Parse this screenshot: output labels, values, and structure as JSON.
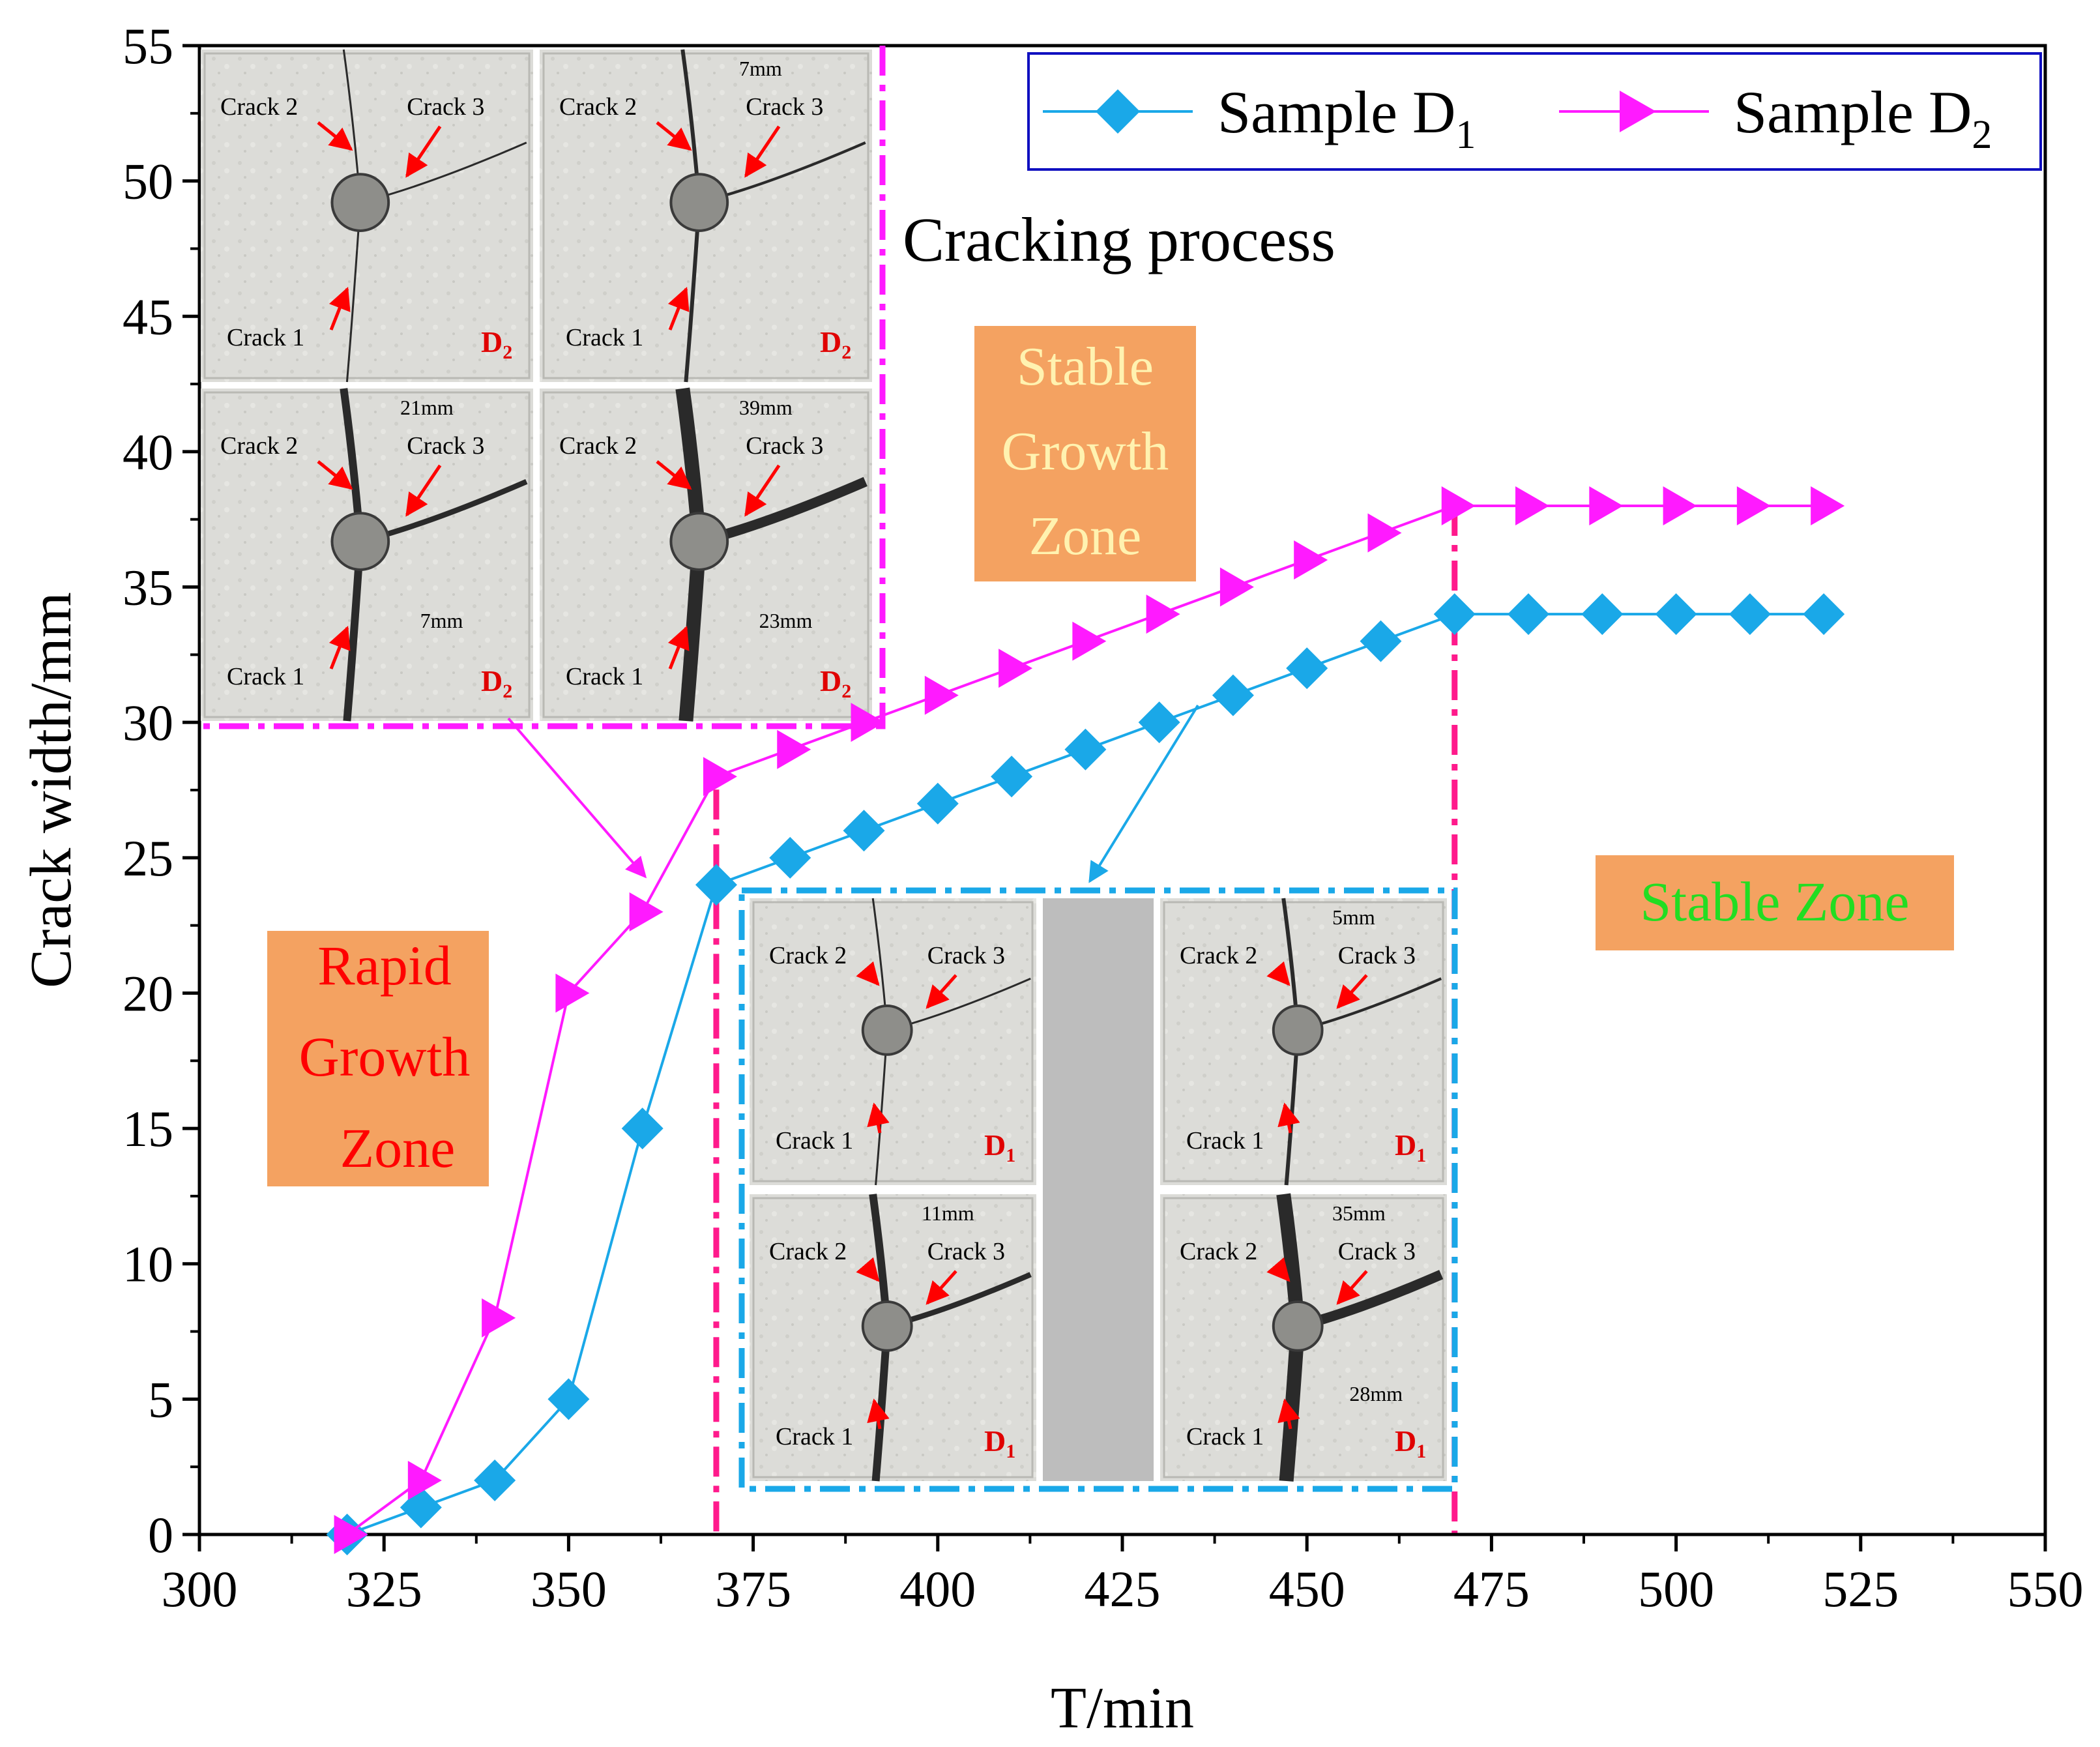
{
  "chart_data": {
    "type": "line",
    "xlabel": "T/min",
    "ylabel": "Crack width/mm",
    "xlim": [
      300,
      550
    ],
    "ylim": [
      0,
      55
    ],
    "xticks": [
      300,
      325,
      350,
      375,
      400,
      425,
      450,
      475,
      500,
      525,
      550
    ],
    "yticks": [
      0,
      5,
      10,
      15,
      20,
      25,
      30,
      35,
      40,
      45,
      50,
      55
    ],
    "legend_position": "top-right",
    "series": [
      {
        "name": "Sample D",
        "subscript": "1",
        "color": "#1aa8e8",
        "marker": "diamond",
        "x": [
          320,
          330,
          340,
          350,
          360,
          370,
          380,
          390,
          400,
          410,
          420,
          430,
          440,
          450,
          460,
          470,
          480,
          490,
          500,
          510,
          520
        ],
        "y": [
          0,
          1,
          2,
          5,
          15,
          24,
          25,
          26,
          27,
          28,
          29,
          30,
          31,
          32,
          33,
          34,
          34,
          34,
          34,
          34,
          34
        ]
      },
      {
        "name": "Sample D",
        "subscript": "2",
        "color": "#ff1aff",
        "marker": "triangle-right",
        "x": [
          320,
          330,
          340,
          350,
          360,
          370,
          380,
          390,
          400,
          410,
          420,
          430,
          440,
          450,
          460,
          470,
          480,
          490,
          500,
          510,
          520
        ],
        "y": [
          0,
          2,
          8,
          20,
          23,
          28,
          29,
          30,
          31,
          32,
          33,
          34,
          35,
          36,
          37,
          38,
          38,
          38,
          38,
          38,
          38
        ]
      }
    ],
    "zone_boundaries_x": [
      370,
      470
    ],
    "annotations": {
      "cracking_process": "Cracking process",
      "stable_growth_zone": [
        "Stable",
        "Growth",
        "Zone"
      ],
      "rapid_growth_zone": [
        "Rapid",
        "Growth",
        "Zone"
      ],
      "stable_zone": "Stable Zone"
    },
    "inset_d2": {
      "panels": [
        {
          "labels": [
            "Crack 2",
            "Crack 3",
            "Crack 1"
          ],
          "width": "",
          "sample": "D",
          "sub": "2"
        },
        {
          "labels": [
            "Crack 2",
            "Crack 3",
            "Crack 1"
          ],
          "width": "7mm",
          "sample": "D",
          "sub": "2"
        },
        {
          "labels": [
            "Crack 2",
            "Crack 3",
            "Crack 1"
          ],
          "width": "21mm",
          "width2": "7mm",
          "sample": "D",
          "sub": "2"
        },
        {
          "labels": [
            "Crack 2",
            "Crack 3",
            "Crack 1"
          ],
          "width": "39mm",
          "width2": "23mm",
          "sample": "D",
          "sub": "2"
        }
      ]
    },
    "inset_d1": {
      "panels": [
        {
          "labels": [
            "Crack 2",
            "Crack 3",
            "Crack 1"
          ],
          "width": "",
          "sample": "D",
          "sub": "1"
        },
        {
          "labels": [
            "Crack 2",
            "Crack 3",
            "Crack 1"
          ],
          "width": "5mm",
          "sample": "D",
          "sub": "1"
        },
        {
          "labels": [
            "Crack 2",
            "Crack 3",
            "Crack 1"
          ],
          "width": "11mm",
          "sample": "D",
          "sub": "1"
        },
        {
          "labels": [
            "Crack 2",
            "Crack 3",
            "Crack 1"
          ],
          "width": "35mm",
          "width2": "28mm",
          "sample": "D",
          "sub": "1"
        }
      ]
    }
  },
  "colors": {
    "zone_box_fill": "#f4a261",
    "zone_box_alt": "#f5a86b",
    "rapid_text": "#ff0000",
    "stable_growth_text": "#fff2b0",
    "stable_text": "#22dd22",
    "d2_frame": "#ff1aff",
    "d1_frame": "#1aa8e8",
    "boundary": "#ff1a8c",
    "legend_frame": "#1010c0"
  }
}
